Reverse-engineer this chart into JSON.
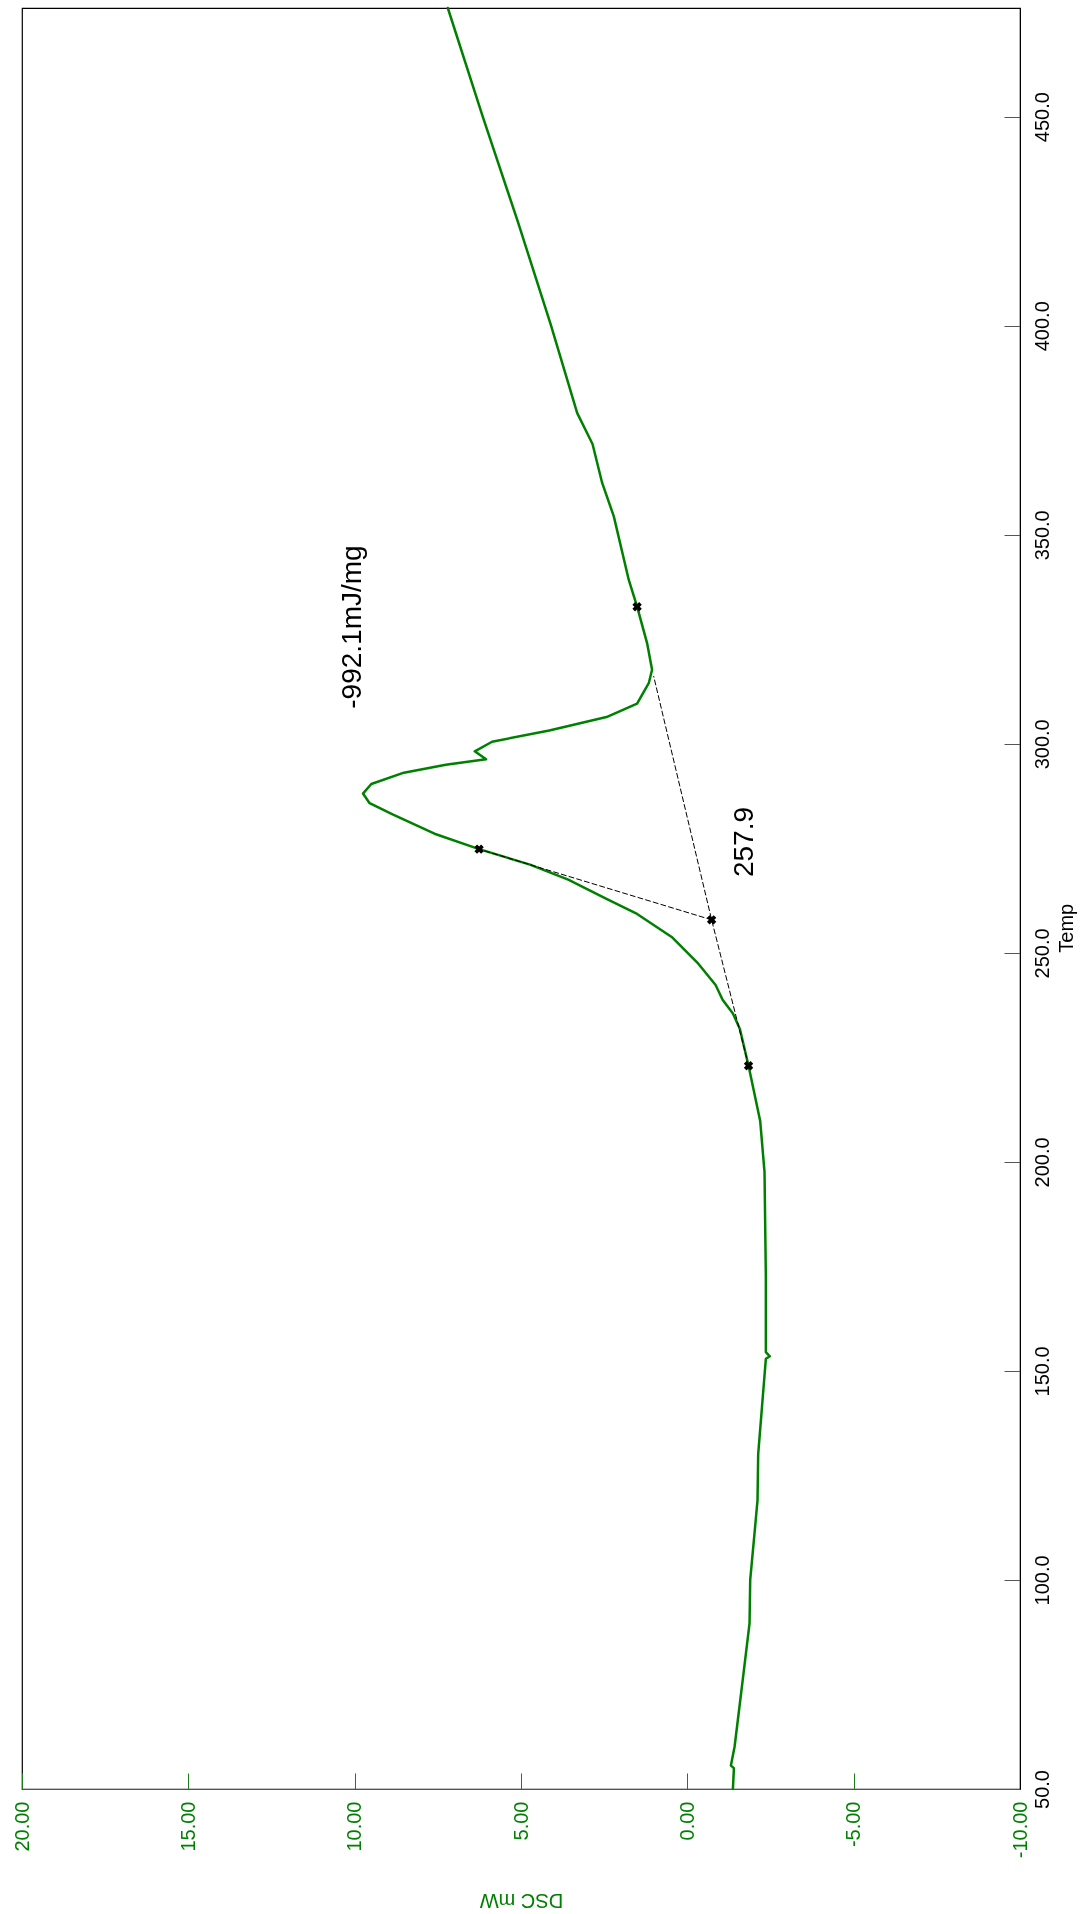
{
  "chart_data": {
    "type": "line",
    "xlabel": "DSC mW",
    "ylabel": "Temp",
    "xlim": [
      20,
      -10
    ],
    "ylim": [
      50,
      476
    ],
    "xticks": [
      {
        "value": 20,
        "label": "20.00"
      },
      {
        "value": 15,
        "label": "15.00"
      },
      {
        "value": 10,
        "label": "10.00"
      },
      {
        "value": 5,
        "label": "5.00"
      },
      {
        "value": 0,
        "label": "0.00"
      },
      {
        "value": -5,
        "label": "-5.00"
      },
      {
        "value": -10,
        "label": "-10.00"
      }
    ],
    "yticks": [
      {
        "value": 50,
        "label": "50.0"
      },
      {
        "value": 100,
        "label": "100.0"
      },
      {
        "value": 150,
        "label": "150.0"
      },
      {
        "value": 200,
        "label": "200.0"
      },
      {
        "value": 250,
        "label": "250.0"
      },
      {
        "value": 300,
        "label": "300.0"
      },
      {
        "value": 350,
        "label": "350.0"
      },
      {
        "value": 400,
        "label": "400.0"
      },
      {
        "value": 450,
        "label": "450.0"
      }
    ],
    "series": [
      {
        "type": "line",
        "color": "#008000",
        "line_style": "solid",
        "x": [
          -1.37,
          -1.4,
          -1.31,
          -1.42,
          -1.69,
          -1.87,
          -1.89,
          -2.02,
          -2.11,
          -2.13,
          -2.36,
          -2.48,
          -2.36,
          -2.36,
          -2.32,
          -2.19,
          -1.84,
          -1.58,
          -1.37,
          -1.06,
          -0.85,
          -0.33,
          0.47,
          1.51,
          2.43,
          3.58,
          4.73,
          6.26,
          7.6,
          8.86,
          9.55,
          9.75,
          9.5,
          8.52,
          7.26,
          6.05,
          6.39,
          5.87,
          4.15,
          2.43,
          1.51,
          1.16,
          1.06,
          1.21,
          1.51,
          1.76,
          2.21,
          2.56,
          2.85,
          3.31,
          4.11,
          5.1,
          6.15,
          7.2
        ],
        "values": [
          50,
          55,
          55.6,
          60.1,
          77.7,
          89.6,
          100,
          111.2,
          119.1,
          130.1,
          152.9,
          153.5,
          154.5,
          172.7,
          197.6,
          209.8,
          223,
          231.8,
          235.5,
          238.8,
          242.3,
          247.4,
          253.8,
          259.3,
          262.9,
          267.5,
          271.1,
          274.8,
          278.5,
          283.1,
          285.8,
          288.1,
          290.4,
          293.1,
          295,
          296.3,
          298.2,
          300.5,
          303.2,
          306.4,
          309.6,
          314.5,
          317.7,
          324.1,
          332.8,
          339.2,
          354.4,
          362.4,
          371.7,
          379.1,
          400.4,
          425,
          450,
          476
        ]
      },
      {
        "type": "line",
        "color": "#000000",
        "line_style": "dashed",
        "x": [
          -1.84,
          -0.73,
          1.01
        ],
        "values": [
          223,
          257.9,
          316.1
        ]
      },
      {
        "type": "line",
        "color": "#000000",
        "line_style": "dashed",
        "x": [
          -0.73,
          6.26
        ],
        "values": [
          257.9,
          274.8
        ]
      },
      {
        "type": "scatter",
        "color": "#000000",
        "marker": "cross",
        "x": [
          -1.84,
          -0.73,
          6.26,
          1.51
        ],
        "values": [
          223,
          257.9,
          274.8,
          332.8
        ]
      }
    ],
    "annotations": [
      "-992.1mJ/mg",
      "257.9"
    ]
  }
}
